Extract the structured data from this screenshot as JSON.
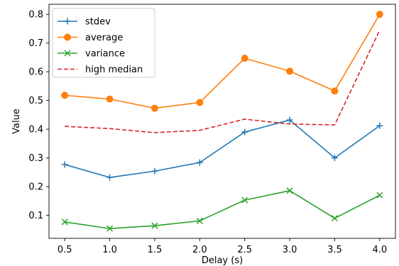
{
  "chart_data": {
    "type": "line",
    "title": "",
    "xlabel": "Delay (s)",
    "ylabel": "Value",
    "x": [
      0.5,
      1.0,
      1.5,
      2.0,
      2.5,
      3.0,
      3.5,
      4.0
    ],
    "xticks": [
      "0.5",
      "1.0",
      "1.5",
      "2.0",
      "2.5",
      "3.0",
      "3.5",
      "4.0"
    ],
    "yticks": [
      "0.1",
      "0.2",
      "0.3",
      "0.4",
      "0.5",
      "0.6",
      "0.7",
      "0.8"
    ],
    "xlim": [
      0.325,
      4.175
    ],
    "ylim": [
      0.02,
      0.835
    ],
    "grid": false,
    "legend_position": "top-left",
    "series": [
      {
        "name": "stdev",
        "values": [
          0.277,
          0.232,
          0.254,
          0.284,
          0.39,
          0.432,
          0.3,
          0.412
        ],
        "color": "#1f77b4",
        "marker": "plus",
        "linestyle": "solid"
      },
      {
        "name": "average",
        "values": [
          0.518,
          0.505,
          0.473,
          0.493,
          0.647,
          0.602,
          0.533,
          0.8
        ],
        "color": "#ff7f0e",
        "marker": "circle",
        "linestyle": "solid"
      },
      {
        "name": "variance",
        "values": [
          0.077,
          0.054,
          0.064,
          0.081,
          0.153,
          0.186,
          0.09,
          0.17
        ],
        "color": "#2ca02c",
        "marker": "x",
        "linestyle": "solid"
      },
      {
        "name": "high median",
        "values": [
          0.41,
          0.402,
          0.388,
          0.396,
          0.435,
          0.418,
          0.415,
          0.745
        ],
        "color": "#d62728",
        "marker": "none",
        "linestyle": "dashed"
      }
    ]
  }
}
